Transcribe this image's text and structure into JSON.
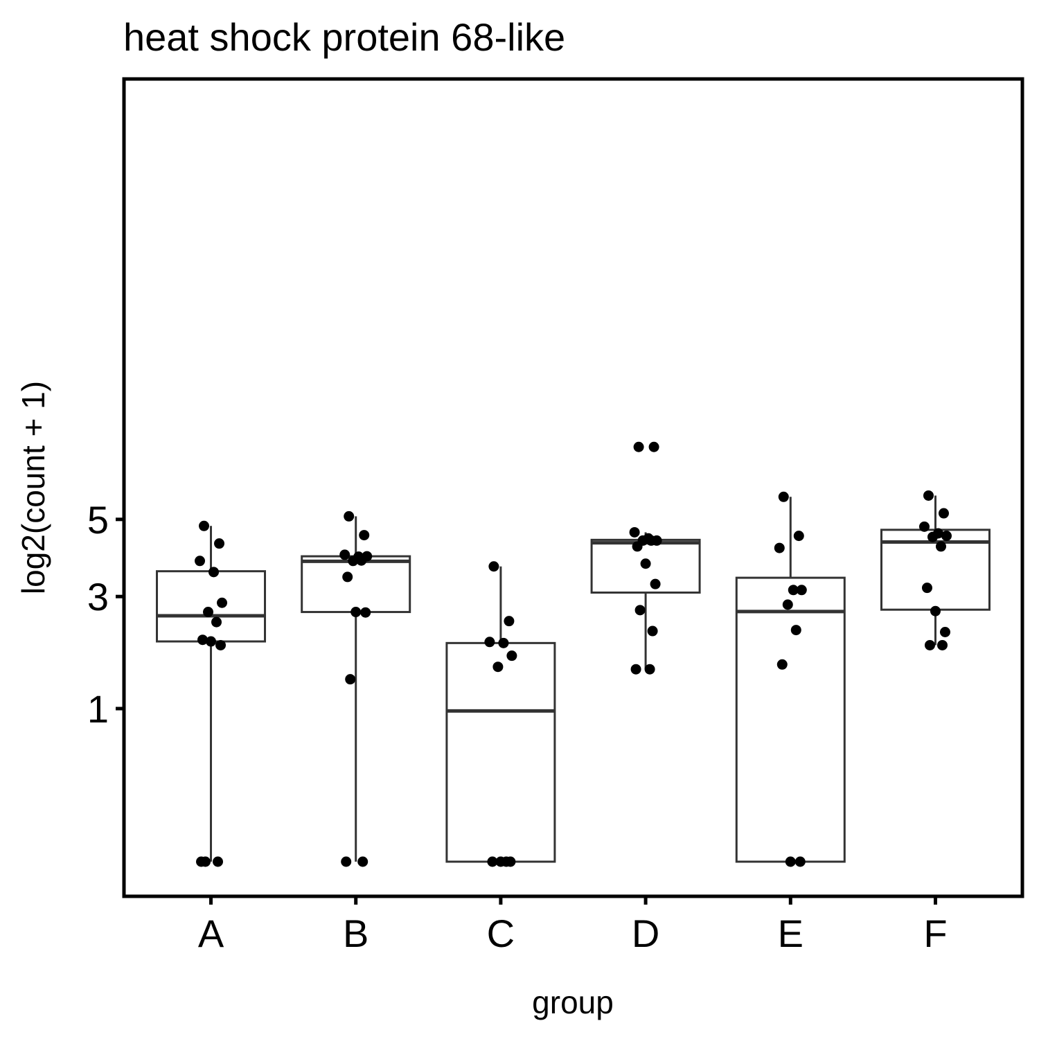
{
  "chart_data": {
    "type": "boxplot",
    "title": "heat shock protein 68-like",
    "xlabel": "group",
    "ylabel": "log2(count + 1)",
    "y_scale": "sqrt",
    "y_ticks": [
      1,
      3,
      5
    ],
    "ylim": [
      0,
      7.34
    ],
    "grid": false,
    "legend": "none",
    "categories": [
      "A",
      "B",
      "C",
      "D",
      "E",
      "F"
    ],
    "boxes": [
      {
        "group": "A",
        "lower_whisker": 0.0,
        "q1": 2.07,
        "median": 2.58,
        "q3": 3.6,
        "upper_whisker": 4.81
      },
      {
        "group": "B",
        "lower_whisker": 0.0,
        "q1": 2.66,
        "median": 3.85,
        "q3": 3.98,
        "upper_whisker": 5.09
      },
      {
        "group": "C",
        "lower_whisker": 0.0,
        "q1": 0.0,
        "median": 0.97,
        "q3": 2.04,
        "upper_whisker": 3.72
      },
      {
        "group": "D",
        "lower_whisker": 1.58,
        "q1": 3.09,
        "median": 4.34,
        "q3": 4.42,
        "upper_whisker": 4.63
      },
      {
        "group": "E",
        "lower_whisker": 0.0,
        "q1": 0.0,
        "median": 2.67,
        "q3": 3.44,
        "upper_whisker": 5.68
      },
      {
        "group": "F",
        "lower_whisker": 2.0,
        "q1": 2.71,
        "median": 4.36,
        "q3": 4.7,
        "upper_whisker": 5.72
      }
    ],
    "points": [
      {
        "group": "A",
        "values": [
          4.81,
          4.32,
          3.86,
          3.58,
          2.86,
          2.66,
          2.45,
          2.1,
          2.07,
          2.0,
          0.0,
          0.0,
          0.0
        ]
      },
      {
        "group": "B",
        "values": [
          5.09,
          4.55,
          4.02,
          3.97,
          3.98,
          3.86,
          3.87,
          3.46,
          2.66,
          2.65,
          1.42,
          0.0,
          0.0
        ]
      },
      {
        "group": "C",
        "values": [
          3.72,
          2.47,
          2.06,
          2.04,
          1.81,
          1.62,
          0.0,
          0.0,
          0.0,
          0.0
        ]
      },
      {
        "group": "D",
        "values": [
          7.34,
          7.34,
          4.63,
          4.46,
          4.4,
          4.4,
          4.4,
          4.24,
          3.79,
          3.29,
          2.7,
          2.27,
          1.58,
          1.58
        ]
      },
      {
        "group": "E",
        "values": [
          5.68,
          4.53,
          4.2,
          3.15,
          3.15,
          2.82,
          2.29,
          1.66,
          0.0,
          0.0
        ]
      },
      {
        "group": "F",
        "values": [
          5.72,
          5.18,
          4.79,
          4.6,
          4.53,
          4.5,
          4.24,
          3.2,
          2.68,
          2.25,
          2.0,
          2.0
        ]
      }
    ]
  }
}
